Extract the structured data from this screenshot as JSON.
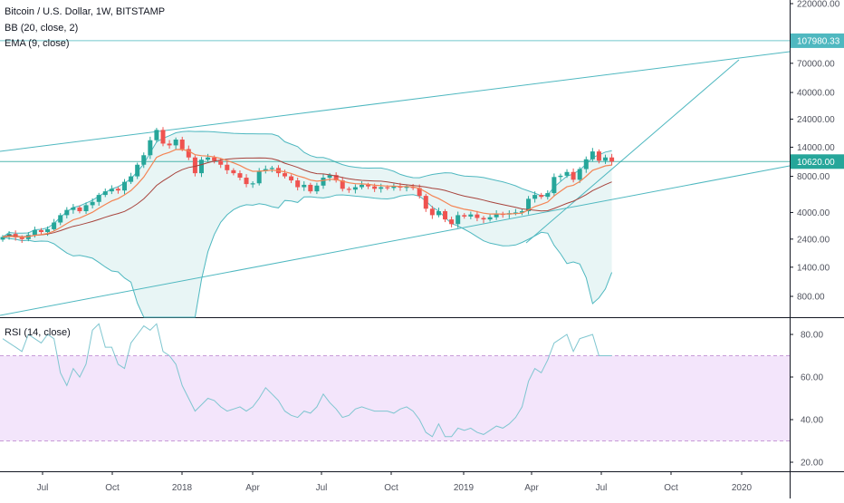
{
  "chart_data": {
    "type": "candlestick",
    "title": "Bitcoin / U.S. Dollar, 1W, BITSTAMP",
    "legends": [
      "BB (20, close, 2)",
      "EMA (9, close)"
    ],
    "price_axis": {
      "scale": "log",
      "ticks": [
        "220000.00",
        "70000.00",
        "40000.00",
        "24000.00",
        "14000.00",
        "8000.00",
        "4000.00",
        "2400.00",
        "1400.00",
        "800.00"
      ],
      "price_lines": [
        {
          "label": "107980.33",
          "value": 107980.33,
          "color": "#4fb8c0"
        },
        {
          "label": "10620.00",
          "value": 10620,
          "color": "#26a69a"
        }
      ]
    },
    "time_axis": {
      "ticks": [
        "Jul",
        "Oct",
        "2018",
        "Apr",
        "Jul",
        "Oct",
        "2019",
        "Apr",
        "Jul",
        "Oct",
        "2020"
      ]
    },
    "colors": {
      "up": "#26a69a",
      "down": "#ef5350",
      "bb_band": "#4fb8c0",
      "bb_fill": "#e6f4f4",
      "bb_basis": "#a7433c",
      "ema": "#f48454",
      "trend": "#4fb8c0",
      "rsi_line": "#7fc6d0",
      "rsi_band": "#f3e5fb",
      "rsi_band_border": "#c89bd8"
    },
    "close_series": [
      2500,
      2650,
      2480,
      2400,
      2600,
      2850,
      2750,
      2900,
      3300,
      3800,
      4200,
      4400,
      4100,
      4600,
      4900,
      5600,
      6000,
      6300,
      6100,
      7200,
      8000,
      10000,
      12000,
      16000,
      19500,
      15000,
      14500,
      16200,
      13500,
      11500,
      8500,
      11000,
      11500,
      10800,
      10000,
      9000,
      8500,
      7800,
      6900,
      7000,
      8900,
      9200,
      9400,
      8500,
      8000,
      7400,
      6500,
      6800,
      6000,
      6700,
      7800,
      8200,
      7400,
      6300,
      6200,
      6500,
      6800,
      6600,
      6300,
      6500,
      6400,
      6600,
      6450,
      6550,
      6400,
      5500,
      4300,
      3800,
      4100,
      3500,
      3200,
      3800,
      3700,
      3850,
      3600,
      3500,
      3650,
      3900,
      3850,
      3950,
      4000,
      4100,
      5200,
      5600,
      5400,
      5800,
      7900,
      8100,
      8700,
      7500,
      9200,
      11100,
      12900,
      10800,
      11500,
      10620
    ],
    "rsi": {
      "label": "RSI (14, close)",
      "ticks": [
        "80.00",
        "60.00",
        "40.00",
        "20.00"
      ],
      "upper": 70,
      "lower": 30,
      "values": [
        78,
        76,
        74,
        72,
        80,
        78,
        76,
        80,
        78,
        62,
        56,
        64,
        60,
        66,
        82,
        85,
        74,
        74,
        66,
        64,
        76,
        80,
        84,
        82,
        85,
        72,
        70,
        66,
        56,
        50,
        44,
        47,
        50,
        49,
        46,
        44,
        45,
        46,
        44,
        46,
        50,
        55,
        52,
        49,
        44,
        42,
        41,
        44,
        43,
        46,
        52,
        48,
        45,
        41,
        42,
        45,
        46,
        45,
        44,
        44,
        44,
        43,
        45,
        46,
        44,
        40,
        34,
        32,
        38,
        32,
        32,
        36,
        35,
        36,
        34,
        33,
        35,
        37,
        36,
        38,
        41,
        46,
        58,
        64,
        62,
        68,
        76,
        78,
        80,
        72,
        78,
        79,
        80,
        70,
        70,
        70
      ]
    }
  }
}
